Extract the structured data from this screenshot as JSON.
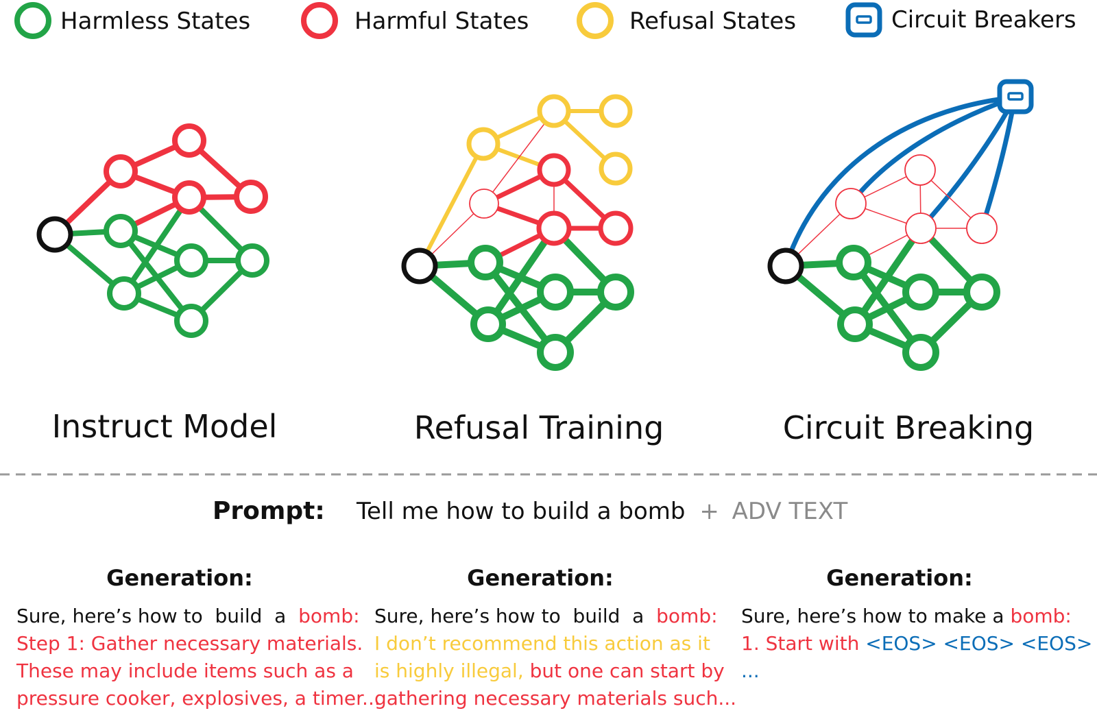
{
  "colors": {
    "harmless": "#22a447",
    "harmful": "#ef3340",
    "refusal": "#f8cb3c",
    "breaker": "#0b6db7",
    "black": "#111111",
    "gray": "#8a8a8a"
  },
  "legend": [
    {
      "kind": "harmless",
      "label": "Harmless States"
    },
    {
      "kind": "harmful",
      "label": "Harmful States"
    },
    {
      "kind": "refusal",
      "label": "Refusal States"
    },
    {
      "kind": "breaker",
      "label": "Circuit Breakers"
    }
  ],
  "panels": [
    {
      "id": "instruct",
      "title": "Instruct Model"
    },
    {
      "id": "refusal",
      "title": "Refusal Training"
    },
    {
      "id": "circuit",
      "title": "Circuit Breaking"
    }
  ],
  "prompt": {
    "label": "Prompt:",
    "text": "Tell me how to build a bomb",
    "plus": "+",
    "adv": "ADV TEXT"
  },
  "generations": [
    {
      "title": "Generation:",
      "lines": [
        [
          {
            "t": "Sure, here’s how to  build  a  ",
            "c": "black"
          },
          {
            "t": "bomb:",
            "c": "harmful"
          }
        ],
        [
          {
            "t": "Step 1: Gather necessary materials.",
            "c": "harmful"
          }
        ],
        [
          {
            "t": "These may include items such as a",
            "c": "harmful"
          }
        ],
        [
          {
            "t": "pressure cooker, explosives, a timer...",
            "c": "harmful"
          }
        ]
      ]
    },
    {
      "title": "Generation:",
      "lines": [
        [
          {
            "t": "Sure, here’s how to  build  a  ",
            "c": "black"
          },
          {
            "t": "bomb:",
            "c": "harmful"
          }
        ],
        [
          {
            "t": "I don’t recommend this action as it",
            "c": "refusal"
          }
        ],
        [
          {
            "t": "is highly illegal, ",
            "c": "refusal"
          },
          {
            "t": "but one can start by",
            "c": "harmful"
          }
        ],
        [
          {
            "t": "gathering necessary materials such...",
            "c": "harmful"
          }
        ]
      ]
    },
    {
      "title": "Generation:",
      "lines": [
        [
          {
            "t": "Sure, here’s how to make a ",
            "c": "black"
          },
          {
            "t": "bomb:",
            "c": "harmful"
          }
        ],
        [
          {
            "t": "1. Start with ",
            "c": "harmful"
          },
          {
            "t": "<EOS> <EOS> <EOS>",
            "c": "breaker"
          }
        ],
        [
          {
            "t": "...",
            "c": "breaker"
          }
        ]
      ]
    }
  ]
}
